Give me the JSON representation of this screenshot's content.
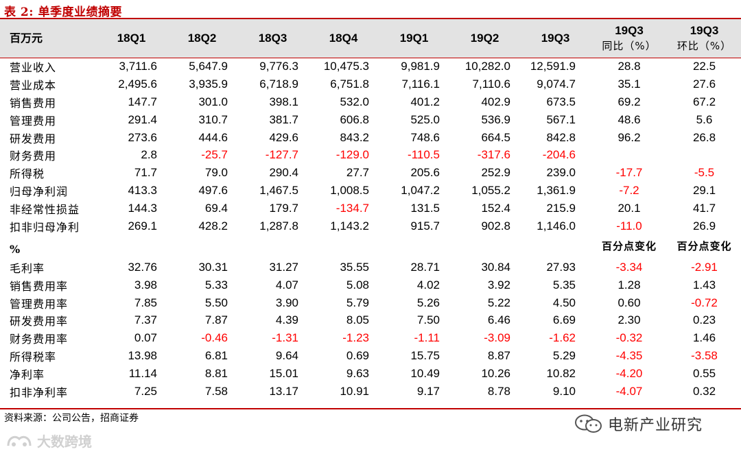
{
  "title": "表 2:  单季度业绩摘要",
  "header": {
    "unit_label": "百万元",
    "columns": [
      "18Q1",
      "18Q2",
      "18Q3",
      "18Q4",
      "19Q1",
      "19Q2",
      "19Q3"
    ],
    "yoy": {
      "top": "19Q3",
      "bottom": "同比（%）"
    },
    "qoq": {
      "top": "19Q3",
      "bottom": "环比（%）"
    }
  },
  "rows_mn": [
    {
      "label": "营业收入",
      "values": [
        "3,711.6",
        "5,647.9",
        "9,776.3",
        "10,475.3",
        "9,981.9",
        "10,282.0",
        "12,591.9"
      ],
      "yoy": "28.8",
      "qoq": "22.5"
    },
    {
      "label": "营业成本",
      "values": [
        "2,495.6",
        "3,935.9",
        "6,718.9",
        "6,751.8",
        "7,116.1",
        "7,110.6",
        "9,074.7"
      ],
      "yoy": "35.1",
      "qoq": "27.6"
    },
    {
      "label": "销售费用",
      "values": [
        "147.7",
        "301.0",
        "398.1",
        "532.0",
        "401.2",
        "402.9",
        "673.5"
      ],
      "yoy": "69.2",
      "qoq": "67.2"
    },
    {
      "label": "管理费用",
      "values": [
        "291.4",
        "310.7",
        "381.7",
        "606.8",
        "525.0",
        "536.9",
        "567.1"
      ],
      "yoy": "48.6",
      "qoq": "5.6"
    },
    {
      "label": "研发费用",
      "values": [
        "273.6",
        "444.6",
        "429.6",
        "843.2",
        "748.6",
        "664.5",
        "842.8"
      ],
      "yoy": "96.2",
      "qoq": "26.8"
    },
    {
      "label": "财务费用",
      "values": [
        "2.8",
        "-25.7",
        "-127.7",
        "-129.0",
        "-110.5",
        "-317.6",
        "-204.6"
      ],
      "yoy": "",
      "qoq": ""
    },
    {
      "label": "所得税",
      "values": [
        "71.7",
        "79.0",
        "290.4",
        "27.7",
        "205.6",
        "252.9",
        "239.0"
      ],
      "yoy": "-17.7",
      "qoq": "-5.5"
    },
    {
      "label": "归母净利润",
      "values": [
        "413.3",
        "497.6",
        "1,467.5",
        "1,008.5",
        "1,047.2",
        "1,055.2",
        "1,361.9"
      ],
      "yoy": "-7.2",
      "qoq": "29.1"
    },
    {
      "label": "非经常性损益",
      "values": [
        "144.3",
        "69.4",
        "179.7",
        "-134.7",
        "131.5",
        "152.4",
        "215.9"
      ],
      "yoy": "20.1",
      "qoq": "41.7"
    },
    {
      "label": "扣非归母净利",
      "values": [
        "269.1",
        "428.2",
        "1,287.8",
        "1,143.2",
        "915.7",
        "902.8",
        "1,146.0"
      ],
      "yoy": "-11.0",
      "qoq": "26.9"
    }
  ],
  "pct_section": {
    "label": "%",
    "yoy_note": "百分点变化",
    "qoq_note": "百分点变化"
  },
  "rows_pct": [
    {
      "label": "毛利率",
      "values": [
        "32.76",
        "30.31",
        "31.27",
        "35.55",
        "28.71",
        "30.84",
        "27.93"
      ],
      "yoy": "-3.34",
      "qoq": "-2.91"
    },
    {
      "label": "销售费用率",
      "values": [
        "3.98",
        "5.33",
        "4.07",
        "5.08",
        "4.02",
        "3.92",
        "5.35"
      ],
      "yoy": "1.28",
      "qoq": "1.43"
    },
    {
      "label": "管理费用率",
      "values": [
        "7.85",
        "5.50",
        "3.90",
        "5.79",
        "5.26",
        "5.22",
        "4.50"
      ],
      "yoy": "0.60",
      "qoq": "-0.72"
    },
    {
      "label": "研发费用率",
      "values": [
        "7.37",
        "7.87",
        "4.39",
        "8.05",
        "7.50",
        "6.46",
        "6.69"
      ],
      "yoy": "2.30",
      "qoq": "0.23"
    },
    {
      "label": "财务费用率",
      "values": [
        "0.07",
        "-0.46",
        "-1.31",
        "-1.23",
        "-1.11",
        "-3.09",
        "-1.62"
      ],
      "yoy": "-0.32",
      "qoq": "1.46"
    },
    {
      "label": "所得税率",
      "values": [
        "13.98",
        "6.81",
        "9.64",
        "0.69",
        "15.75",
        "8.87",
        "5.29"
      ],
      "yoy": "-4.35",
      "qoq": "-3.58"
    },
    {
      "label": "净利率",
      "values": [
        "11.14",
        "8.81",
        "15.01",
        "9.63",
        "10.49",
        "10.26",
        "10.82"
      ],
      "yoy": "-4.20",
      "qoq": "0.55"
    },
    {
      "label": "扣非净利率",
      "values": [
        "7.25",
        "7.58",
        "13.17",
        "10.91",
        "9.17",
        "8.78",
        "9.10"
      ],
      "yoy": "-4.07",
      "qoq": "0.32"
    }
  ],
  "source": "资料来源：公司公告，招商证券",
  "wechat_account": "电新产业研究",
  "watermark": "大数跨境",
  "colors": {
    "accent": "#c00000",
    "negative": "#ff0000",
    "header_bg": "#e3e3e3"
  }
}
